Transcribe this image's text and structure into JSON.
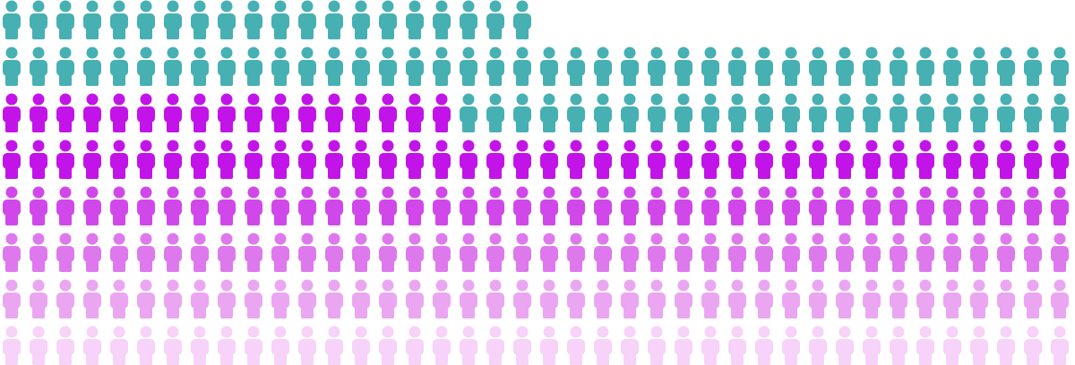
{
  "chart_data": {
    "type": "pictogram",
    "series": [
      {
        "color": "#f7d2f9",
        "values": [
          40
        ]
      },
      {
        "color": "#eba6f2",
        "values": [
          40
        ]
      },
      {
        "color": "#de79ed",
        "values": [
          40
        ]
      },
      {
        "color": "#d148ea",
        "values": [
          40
        ]
      },
      {
        "color": "#c214e8",
        "values": [
          57
        ]
      },
      {
        "color": "#46b0b3",
        "values": [
          83
        ]
      }
    ]
  }
}
